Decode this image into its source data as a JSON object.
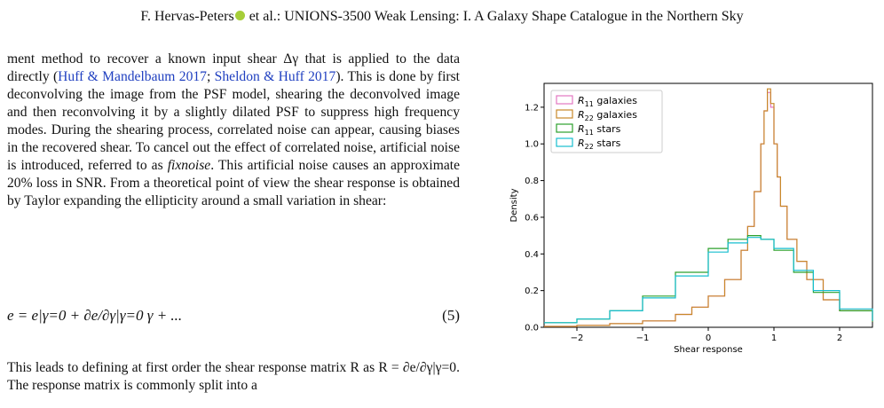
{
  "header": {
    "prefix": "F. Hervas-Peters",
    "suffix": " et al.: UNIONS-3500 Weak Lensing: I. A Galaxy Shape Catalogue in the Northern Sky"
  },
  "para1": {
    "t1": "ment method to recover a known input shear Δγ that is applied to the data directly (",
    "c1": "Huff & Mandelbaum 2017",
    "t2": "; ",
    "c2": "Sheldon & Huff 2017",
    "t3": "). This is done by first deconvolving the image from the PSF model, shearing the deconvolved image and then reconvolving it by a slightly dilated PSF to suppress high frequency modes. During the shearing process, correlated noise can appear, causing biases in the recovered shear. To cancel out the effect of correlated noise, artificial noise is introduced, referred to as ",
    "em": "fixnoise",
    "t4": ". This artificial noise causes an approximate 20% loss in SNR. From a theoretical point of view the shear response is obtained by Taylor expanding the ellipticity around a small variation in shear:"
  },
  "equation": {
    "text": "e = e|γ=0 + ∂e/∂γ|γ=0 γ + ...",
    "number": "(5)"
  },
  "para2": {
    "text": "This leads to defining at first order the shear response matrix R as R = ∂e/∂γ|γ=0. The response matrix is commonly split into a"
  },
  "chart_data": {
    "type": "line",
    "xlabel": "Shear response",
    "ylabel": "Density",
    "xlim": [
      -2.5,
      2.5
    ],
    "ylim": [
      0,
      1.33
    ],
    "xticks": [
      "−2",
      "−1",
      "0",
      "1",
      "2"
    ],
    "yticks": [
      "0.0",
      "0.2",
      "0.4",
      "0.6",
      "0.8",
      "1.0",
      "1.2"
    ],
    "legend_position": "top-left",
    "series": [
      {
        "name": "R11 galaxies",
        "color": "#e377c2",
        "x": [
          -2.5,
          -2.0,
          -1.5,
          -1.0,
          -0.5,
          -0.25,
          0.0,
          0.25,
          0.5,
          0.6,
          0.7,
          0.8,
          0.85,
          0.9,
          0.95,
          1.0,
          1.05,
          1.1,
          1.2,
          1.35,
          1.5,
          1.75,
          2.0,
          2.5
        ],
        "y": [
          0.005,
          0.01,
          0.02,
          0.035,
          0.07,
          0.11,
          0.17,
          0.26,
          0.42,
          0.55,
          0.74,
          1.0,
          1.18,
          1.28,
          1.2,
          1.0,
          0.82,
          0.66,
          0.48,
          0.36,
          0.26,
          0.15,
          0.09,
          0.03
        ]
      },
      {
        "name": "R22 galaxies",
        "color": "#c8892a",
        "x": [
          -2.5,
          -2.0,
          -1.5,
          -1.0,
          -0.5,
          -0.25,
          0.0,
          0.25,
          0.5,
          0.6,
          0.7,
          0.8,
          0.85,
          0.9,
          0.95,
          1.0,
          1.05,
          1.1,
          1.2,
          1.35,
          1.5,
          1.75,
          2.0,
          2.5
        ],
        "y": [
          0.005,
          0.01,
          0.02,
          0.035,
          0.07,
          0.11,
          0.17,
          0.26,
          0.42,
          0.55,
          0.74,
          1.0,
          1.18,
          1.3,
          1.22,
          1.0,
          0.82,
          0.66,
          0.48,
          0.36,
          0.26,
          0.15,
          0.09,
          0.03
        ]
      },
      {
        "name": "R11 stars",
        "color": "#2ca02c",
        "x": [
          -2.5,
          -2.0,
          -1.5,
          -1.0,
          -0.5,
          0.0,
          0.3,
          0.6,
          0.8,
          1.0,
          1.3,
          1.6,
          2.0,
          2.5
        ],
        "y": [
          0.025,
          0.045,
          0.09,
          0.17,
          0.3,
          0.43,
          0.48,
          0.5,
          0.48,
          0.42,
          0.3,
          0.19,
          0.09,
          0.03
        ]
      },
      {
        "name": "R22 stars",
        "color": "#17becf",
        "x": [
          -2.5,
          -2.0,
          -1.5,
          -1.0,
          -0.5,
          0.0,
          0.3,
          0.6,
          0.8,
          1.0,
          1.3,
          1.6,
          2.0,
          2.5
        ],
        "y": [
          0.025,
          0.045,
          0.09,
          0.16,
          0.28,
          0.41,
          0.46,
          0.49,
          0.48,
          0.43,
          0.31,
          0.2,
          0.1,
          0.035
        ]
      }
    ]
  }
}
